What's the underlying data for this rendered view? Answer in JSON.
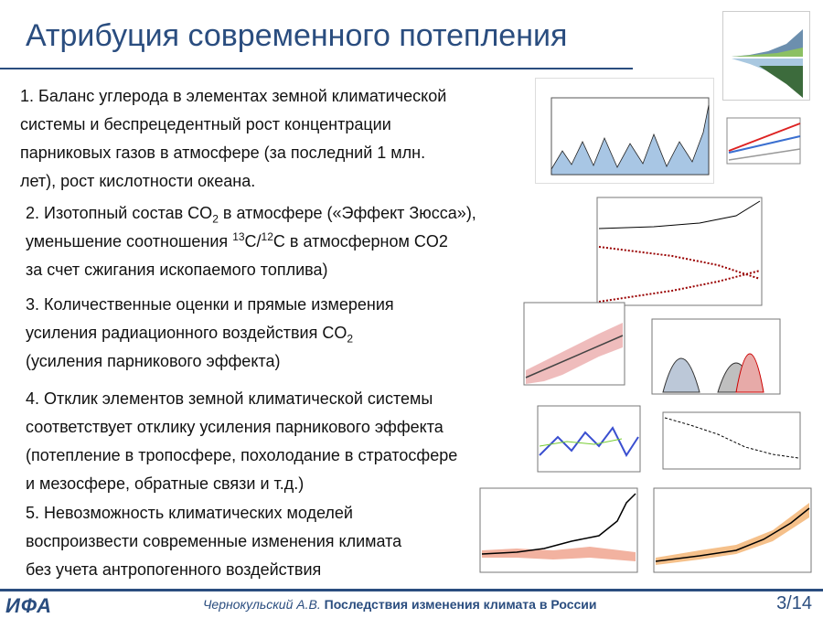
{
  "title": "Атрибуция современного потепления",
  "items": [
    {
      "lines": [
        [
          "1. Баланс углерода в элементах земной климатической"
        ],
        [
          "системы и беспрецедентный рост концентрации"
        ],
        [
          "парниковых газов в атмосфере (за последний 1 млн."
        ],
        [
          "лет), рост кислотности океана."
        ]
      ]
    },
    {
      "lines": [
        [
          "2. Изотопный состав CO",
          {
            "sub": "2"
          },
          " в атмосфере («Эффект Зюсса»),"
        ],
        [
          "уменьшение соотношения ",
          {
            "sup": "13"
          },
          "C/",
          {
            "sup": "12"
          },
          "C в атмосферном CO2"
        ],
        [
          "за счет сжигания ископаемого топлива)"
        ]
      ]
    },
    {
      "lines": [
        [
          "3. Количественные оценки и прямые измерения"
        ],
        [
          "усиления радиационного воздействия CO",
          {
            "sub": "2"
          }
        ],
        [
          "(усиления парникового эффекта)"
        ]
      ]
    },
    {
      "lines": [
        [
          "4. Отклик элементов земной климатической системы"
        ],
        [
          "соответствует отклику усиления парникового эффекта"
        ],
        [
          "(потепление в тропосфере, похолодание в стратосфере"
        ],
        [
          "и мезосфере, обратные связи и т.д.)"
        ]
      ]
    },
    {
      "lines": [
        [
          "5. Невозможность климатических моделей"
        ],
        [
          "воспроизвести современные изменения климата"
        ],
        [
          "без учета антропогенного воздействия"
        ]
      ]
    }
  ],
  "footer": {
    "logo": "ИФА",
    "author": "Чернокульский А.В.",
    "talk": "Последствия изменения климата в России",
    "page": "3/14"
  }
}
